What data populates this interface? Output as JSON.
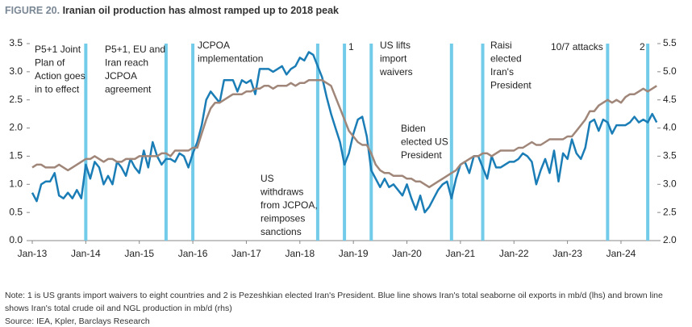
{
  "chart_data": {
    "type": "line",
    "figure_label": "FIGURE 20.",
    "title": "Iranian oil production has almost ramped up to 2018 peak",
    "x": [
      "Jan-13",
      "Feb-13",
      "Mar-13",
      "Apr-13",
      "May-13",
      "Jun-13",
      "Jul-13",
      "Aug-13",
      "Sep-13",
      "Oct-13",
      "Nov-13",
      "Dec-13",
      "Jan-14",
      "Feb-14",
      "Mar-14",
      "Apr-14",
      "May-14",
      "Jun-14",
      "Jul-14",
      "Aug-14",
      "Sep-14",
      "Oct-14",
      "Nov-14",
      "Dec-14",
      "Jan-15",
      "Feb-15",
      "Mar-15",
      "Apr-15",
      "May-15",
      "Jun-15",
      "Jul-15",
      "Aug-15",
      "Sep-15",
      "Oct-15",
      "Nov-15",
      "Dec-15",
      "Jan-16",
      "Feb-16",
      "Mar-16",
      "Apr-16",
      "May-16",
      "Jun-16",
      "Jul-16",
      "Aug-16",
      "Sep-16",
      "Oct-16",
      "Nov-16",
      "Dec-16",
      "Jan-17",
      "Feb-17",
      "Mar-17",
      "Apr-17",
      "May-17",
      "Jun-17",
      "Jul-17",
      "Aug-17",
      "Sep-17",
      "Oct-17",
      "Nov-17",
      "Dec-17",
      "Jan-18",
      "Feb-18",
      "Mar-18",
      "Apr-18",
      "May-18",
      "Jun-18",
      "Jul-18",
      "Aug-18",
      "Sep-18",
      "Oct-18",
      "Nov-18",
      "Dec-18",
      "Jan-19",
      "Feb-19",
      "Mar-19",
      "Apr-19",
      "May-19",
      "Jun-19",
      "Jul-19",
      "Aug-19",
      "Sep-19",
      "Oct-19",
      "Nov-19",
      "Dec-19",
      "Jan-20",
      "Feb-20",
      "Mar-20",
      "Apr-20",
      "May-20",
      "Jun-20",
      "Jul-20",
      "Aug-20",
      "Sep-20",
      "Oct-20",
      "Nov-20",
      "Dec-20",
      "Jan-21",
      "Feb-21",
      "Mar-21",
      "Apr-21",
      "May-21",
      "Jun-21",
      "Jul-21",
      "Aug-21",
      "Sep-21",
      "Oct-21",
      "Nov-21",
      "Dec-21",
      "Jan-22",
      "Feb-22",
      "Mar-22",
      "Apr-22",
      "May-22",
      "Jun-22",
      "Jul-22",
      "Aug-22",
      "Sep-22",
      "Oct-22",
      "Nov-22",
      "Dec-22",
      "Jan-23",
      "Feb-23",
      "Mar-23",
      "Apr-23",
      "May-23",
      "Jun-23",
      "Jul-23",
      "Aug-23",
      "Sep-23",
      "Oct-23",
      "Nov-23",
      "Dec-23",
      "Jan-24",
      "Feb-24",
      "Mar-24",
      "Apr-24",
      "May-24",
      "Jun-24",
      "Jul-24",
      "Aug-24",
      "Sep-24"
    ],
    "xticks": [
      "Jan-13",
      "Jan-14",
      "Jan-15",
      "Jan-16",
      "Jan-17",
      "Jan-18",
      "Jan-19",
      "Jan-20",
      "Jan-21",
      "Jan-22",
      "Jan-23",
      "Jan-24"
    ],
    "ylim": [
      0,
      3.5
    ],
    "yticks": [
      {
        "value": 0,
        "label": "0.0"
      },
      0.5,
      {
        "value": 1,
        "label": "1.0"
      },
      1.5,
      {
        "value": 2,
        "label": "2.0"
      },
      2.5,
      {
        "value": 3,
        "label": "3.0"
      },
      3.5
    ],
    "y2lim": [
      2,
      5.5
    ],
    "y2ticks": [
      {
        "value": 2,
        "label": "2.0"
      },
      2.5,
      {
        "value": 3,
        "label": "3.0"
      },
      3.5,
      {
        "value": 4,
        "label": "4.0"
      },
      4.5,
      {
        "value": 5,
        "label": "5.0"
      },
      5.5
    ],
    "series": [
      {
        "name": "Iran's total seaborne oil exports (lhs)",
        "color": "#1b7db6",
        "axis": "y",
        "values": [
          0.85,
          0.7,
          1.0,
          1.05,
          1.05,
          1.2,
          0.8,
          0.75,
          0.85,
          0.75,
          0.9,
          0.75,
          1.35,
          1.1,
          1.4,
          1.3,
          1.0,
          1.15,
          1.0,
          1.4,
          1.3,
          1.15,
          1.45,
          1.3,
          1.2,
          1.6,
          1.3,
          1.75,
          1.5,
          1.35,
          1.45,
          1.45,
          1.4,
          1.55,
          1.5,
          1.3,
          1.55,
          1.75,
          2.05,
          2.5,
          2.65,
          2.55,
          2.45,
          2.85,
          2.85,
          2.85,
          2.65,
          2.85,
          2.8,
          2.85,
          2.6,
          3.05,
          3.05,
          3.05,
          3.0,
          3.05,
          3.1,
          2.95,
          3.05,
          3.1,
          3.25,
          3.2,
          3.35,
          3.3,
          3.1,
          2.9,
          2.55,
          2.25,
          2.0,
          1.75,
          1.35,
          1.55,
          1.9,
          2.15,
          2.2,
          1.85,
          1.25,
          1.1,
          0.95,
          1.1,
          0.95,
          1.0,
          0.9,
          0.8,
          1.0,
          0.75,
          0.55,
          0.8,
          0.5,
          0.6,
          0.75,
          0.9,
          1.0,
          1.05,
          0.75,
          1.1,
          1.35,
          1.4,
          1.2,
          1.5,
          1.5,
          1.3,
          1.1,
          1.5,
          1.3,
          1.3,
          1.35,
          1.4,
          1.4,
          1.45,
          1.55,
          1.5,
          1.4,
          1.0,
          1.25,
          1.45,
          1.2,
          1.6,
          1.05,
          1.55,
          1.45,
          1.8,
          1.55,
          1.45,
          1.65,
          2.1,
          2.15,
          1.95,
          2.15,
          2.1,
          1.9,
          2.05,
          2.05,
          2.05,
          2.1,
          2.2,
          2.1,
          2.15,
          2.1,
          2.25,
          2.1
        ]
      },
      {
        "name": "Iran's total crude oil and NGL production (rhs)",
        "color": "#a08679",
        "axis": "y2",
        "values": [
          3.3,
          3.35,
          3.35,
          3.3,
          3.3,
          3.3,
          3.35,
          3.3,
          3.25,
          3.3,
          3.35,
          3.4,
          3.45,
          3.45,
          3.5,
          3.45,
          3.4,
          3.45,
          3.45,
          3.4,
          3.4,
          3.45,
          3.45,
          3.45,
          3.5,
          3.5,
          3.5,
          3.5,
          3.5,
          3.55,
          3.55,
          3.5,
          3.6,
          3.6,
          3.6,
          3.6,
          3.65,
          3.65,
          3.9,
          4.15,
          4.35,
          4.45,
          4.45,
          4.5,
          4.55,
          4.6,
          4.6,
          4.6,
          4.65,
          4.65,
          4.7,
          4.7,
          4.75,
          4.75,
          4.7,
          4.75,
          4.75,
          4.75,
          4.8,
          4.75,
          4.8,
          4.8,
          4.85,
          4.85,
          4.85,
          4.85,
          4.8,
          4.75,
          4.55,
          4.35,
          4.15,
          3.95,
          3.85,
          3.75,
          3.7,
          3.7,
          3.55,
          3.35,
          3.25,
          3.2,
          3.2,
          3.15,
          3.15,
          3.15,
          3.1,
          3.1,
          3.05,
          3.05,
          3.0,
          2.95,
          3.0,
          3.05,
          3.1,
          3.15,
          3.2,
          3.25,
          3.35,
          3.4,
          3.45,
          3.5,
          3.5,
          3.55,
          3.55,
          3.5,
          3.55,
          3.6,
          3.6,
          3.6,
          3.6,
          3.65,
          3.65,
          3.7,
          3.75,
          3.7,
          3.7,
          3.75,
          3.8,
          3.8,
          3.8,
          3.8,
          3.85,
          3.85,
          3.95,
          4.05,
          4.15,
          4.3,
          4.3,
          4.4,
          4.45,
          4.5,
          4.45,
          4.5,
          4.45,
          4.55,
          4.6,
          4.6,
          4.65,
          4.7,
          4.65,
          4.7,
          4.75
        ]
      }
    ],
    "event_color": "#72cbe9",
    "events": [
      {
        "x": "Jan-14",
        "label": [
          "P5+1 Joint",
          "Plan of",
          "Action goes",
          "in to effect"
        ]
      },
      {
        "x": "Jul-15",
        "label": [
          "P5+1, EU and",
          "Iran reach",
          "JCPOA",
          "agreement"
        ]
      },
      {
        "x": "Jan-16",
        "label": [
          "JCPOA",
          "implementation"
        ]
      },
      {
        "x": "May-18",
        "label": [
          "US",
          "withdraws",
          "from JCPOA,",
          "reimposes",
          "sanctions"
        ]
      },
      {
        "x": "Nov-18",
        "label": [
          "1"
        ]
      },
      {
        "x": "May-19",
        "label": [
          "US lifts",
          "import",
          "waivers"
        ]
      },
      {
        "x": "Nov-20",
        "label": [
          "Biden",
          "elected US",
          "President"
        ]
      },
      {
        "x": "Jun-21",
        "label": [
          "Raisi",
          "elected",
          "Iran's",
          "President"
        ]
      },
      {
        "x": "Oct-23",
        "label": [
          "10/7 attacks"
        ]
      },
      {
        "x": "Jul-24",
        "label": [
          "2"
        ]
      }
    ],
    "note": "Note: 1 is US grants import waivers to eight countries and 2 is Pezeshkian elected Iran's President. Blue line shows Iran's total seaborne oil exports in mb/d (lhs) and brown line shows Iran's total crude oil and NGL production in mb/d (rhs)",
    "source": "Source: IEA, Kpler, Barclays Research"
  }
}
